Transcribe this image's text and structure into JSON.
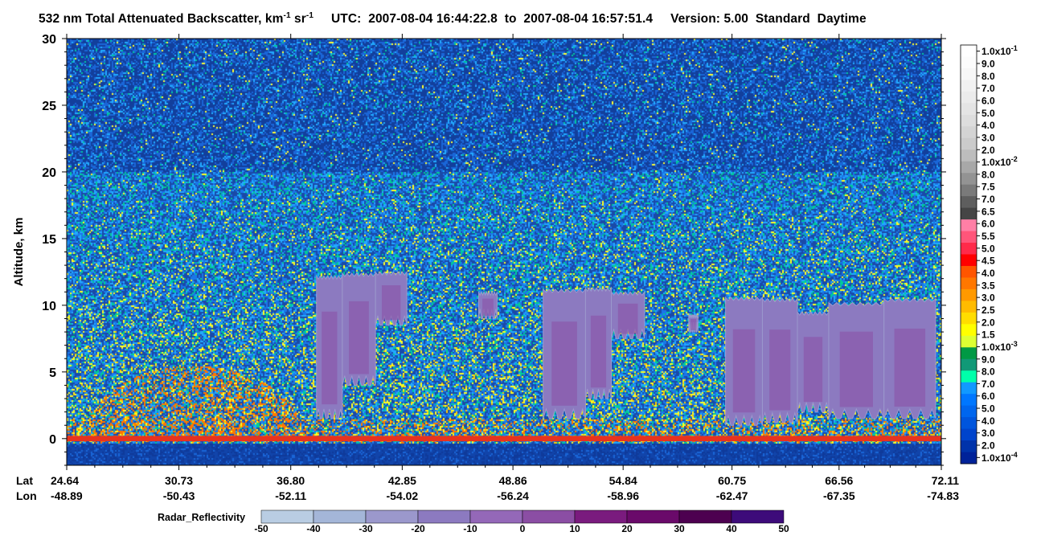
{
  "title": {
    "product": "532 nm Total Attenuated Backscatter, km",
    "unit_exp1": "-1",
    "unit_sr": " sr",
    "unit_exp2": "-1",
    "utc_label": "UTC:",
    "start_time": "2007-08-04 16:44:22.8",
    "to_label": "to",
    "end_time": "2007-08-04 16:57:51.4",
    "version": "Version: 5.00",
    "mode": "Standard",
    "daynight": "Daytime"
  },
  "chart_data": [
    {
      "type": "heatmap",
      "ylabel": "Altitude, km",
      "ylim": [
        -2,
        30
      ],
      "yticks": [
        0,
        5,
        10,
        15,
        20,
        25,
        30
      ],
      "x_row_labels": [
        "Lat",
        "Lon"
      ],
      "x_ticks": [
        {
          "lat": "24.64",
          "lon": "-48.89"
        },
        {
          "lat": "30.73",
          "lon": "-50.43"
        },
        {
          "lat": "36.80",
          "lon": "-52.11"
        },
        {
          "lat": "42.85",
          "lon": "-54.02"
        },
        {
          "lat": "48.86",
          "lon": "-56.24"
        },
        {
          "lat": "54.84",
          "lon": "-58.96"
        },
        {
          "lat": "60.75",
          "lon": "-62.47"
        },
        {
          "lat": "66.56",
          "lon": "-67.35"
        },
        {
          "lat": "72.11",
          "lon": "-74.83"
        }
      ],
      "radar_clouds": [
        {
          "lat_start": 38.2,
          "lat_end": 39.6,
          "top": 12.2,
          "bottom": 1.5
        },
        {
          "lat_start": 39.6,
          "lat_end": 41.4,
          "top": 12.4,
          "bottom": 4.0
        },
        {
          "lat_start": 41.4,
          "lat_end": 43.1,
          "top": 12.5,
          "bottom": 8.5
        },
        {
          "lat_start": 47.0,
          "lat_end": 48.0,
          "top": 11.0,
          "bottom": 9.0
        },
        {
          "lat_start": 50.5,
          "lat_end": 52.8,
          "top": 11.2,
          "bottom": 1.5
        },
        {
          "lat_start": 52.8,
          "lat_end": 54.2,
          "top": 11.3,
          "bottom": 3.0
        },
        {
          "lat_start": 54.2,
          "lat_end": 56.0,
          "top": 11.0,
          "bottom": 7.5
        },
        {
          "lat_start": 58.4,
          "lat_end": 58.9,
          "top": 9.3,
          "bottom": 8.0
        },
        {
          "lat_start": 60.4,
          "lat_end": 62.4,
          "top": 10.6,
          "bottom": 1.0
        },
        {
          "lat_start": 62.4,
          "lat_end": 64.3,
          "top": 10.5,
          "bottom": 1.2
        },
        {
          "lat_start": 64.3,
          "lat_end": 66.0,
          "top": 9.5,
          "bottom": 2.0
        },
        {
          "lat_start": 66.0,
          "lat_end": 69.0,
          "top": 10.2,
          "bottom": 1.5
        },
        {
          "lat_start": 69.0,
          "lat_end": 71.8,
          "top": 10.5,
          "bottom": 1.5
        }
      ]
    },
    {
      "type": "colorbar",
      "name": "backscatter",
      "labels": [
        "1.0x10-1",
        "9.0",
        "8.0",
        "7.0",
        "6.0",
        "5.0",
        "4.0",
        "3.0",
        "2.0",
        "1.0x10-2",
        "8.0",
        "7.5",
        "7.0",
        "6.5",
        "6.0",
        "5.5",
        "5.0",
        "4.5",
        "4.0",
        "3.5",
        "3.0",
        "2.5",
        "2.0",
        "1.5",
        "1.0x10-3",
        "9.0",
        "8.0",
        "7.0",
        "6.0",
        "5.0",
        "4.0",
        "3.0",
        "2.0",
        "1.0x10-4"
      ],
      "colors": [
        "#ffffff",
        "#fcfcfc",
        "#f7f7f7",
        "#f1f1f1",
        "#ebebeb",
        "#e4e4e4",
        "#dddddd",
        "#d4d4d4",
        "#cbcbcb",
        "#bdbdbd",
        "#a8a8a8",
        "#939393",
        "#7a7a7a",
        "#5e5e5e",
        "#454545",
        "#ff7fa6",
        "#ff557a",
        "#ff2a4a",
        "#ff0000",
        "#ff5500",
        "#ff7700",
        "#ff9900",
        "#ffbb00",
        "#ffdd00",
        "#ffff00",
        "#ddff33",
        "#009944",
        "#119977",
        "#00ffaa",
        "#1199ff",
        "#0077ff",
        "#0066ee",
        "#0055dd",
        "#0044cc",
        "#0033aa",
        "#002299"
      ]
    },
    {
      "type": "colorbar",
      "name": "Radar_Reflectivity",
      "title": "Radar_Reflectivity",
      "ticks": [
        "-50",
        "-40",
        "-30",
        "-20",
        "-10",
        "0",
        "10",
        "20",
        "30",
        "40",
        "50"
      ],
      "colors": [
        "#b9cde3",
        "#a4b6d8",
        "#9b98cc",
        "#8c7ac0",
        "#9468b8",
        "#8b4ea4",
        "#7a1b7e",
        "#6a0a6a",
        "#4d0050",
        "#3d0b7a"
      ]
    }
  ]
}
